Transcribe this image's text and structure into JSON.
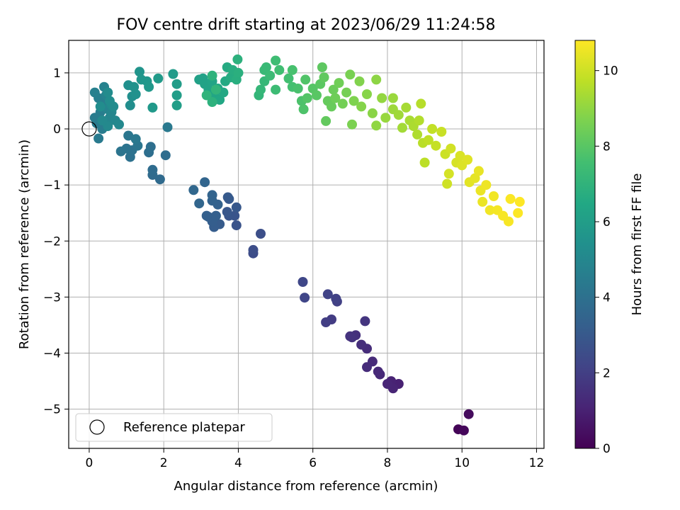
{
  "chart_data": {
    "type": "scatter",
    "title": "FOV centre drift starting at 2023/06/29 11:24:58",
    "xlabel": "Angular distance from reference (arcmin)",
    "ylabel": "Rotation from reference (arcmin)",
    "xlim": [
      -0.55,
      12.2
    ],
    "ylim": [
      -5.7,
      1.58
    ],
    "x_ticks": [
      0,
      2,
      4,
      6,
      8,
      10,
      12
    ],
    "y_ticks": [
      -5,
      -4,
      -3,
      -2,
      -1,
      0,
      1
    ],
    "grid": true,
    "legend": {
      "placement": "lower-left",
      "entries": [
        "Reference platepar"
      ]
    },
    "reference_point": {
      "x": 0,
      "y": 0
    },
    "colorbar": {
      "label": "Hours from first FF file",
      "range": [
        0,
        10.8
      ],
      "ticks": [
        0,
        2,
        4,
        6,
        8,
        10
      ],
      "colormap": "viridis"
    },
    "points": [
      {
        "x": 9.9,
        "y": -5.36,
        "h": 0.1
      },
      {
        "x": 10.05,
        "y": -5.38,
        "h": 0.2
      },
      {
        "x": 10.18,
        "y": -5.09,
        "h": 0.3
      },
      {
        "x": 8.3,
        "y": -4.55,
        "h": 1.0
      },
      {
        "x": 8.1,
        "y": -4.5,
        "h": 1.05
      },
      {
        "x": 8.15,
        "y": -4.63,
        "h": 1.1
      },
      {
        "x": 8.0,
        "y": -4.55,
        "h": 1.15
      },
      {
        "x": 7.8,
        "y": -4.38,
        "h": 1.2
      },
      {
        "x": 7.75,
        "y": -4.33,
        "h": 1.25
      },
      {
        "x": 7.6,
        "y": -4.15,
        "h": 1.3
      },
      {
        "x": 7.45,
        "y": -4.25,
        "h": 1.35
      },
      {
        "x": 7.45,
        "y": -3.92,
        "h": 1.4
      },
      {
        "x": 7.3,
        "y": -3.85,
        "h": 1.45
      },
      {
        "x": 7.15,
        "y": -3.68,
        "h": 1.5
      },
      {
        "x": 7.05,
        "y": -3.72,
        "h": 1.55
      },
      {
        "x": 7.0,
        "y": -3.7,
        "h": 1.6
      },
      {
        "x": 7.4,
        "y": -3.43,
        "h": 1.65
      },
      {
        "x": 6.5,
        "y": -3.4,
        "h": 1.9
      },
      {
        "x": 6.35,
        "y": -3.45,
        "h": 1.95
      },
      {
        "x": 6.65,
        "y": -3.08,
        "h": 2.05
      },
      {
        "x": 6.62,
        "y": -3.03,
        "h": 2.1
      },
      {
        "x": 6.4,
        "y": -2.95,
        "h": 2.15
      },
      {
        "x": 5.78,
        "y": -3.01,
        "h": 2.25
      },
      {
        "x": 5.73,
        "y": -2.73,
        "h": 2.3
      },
      {
        "x": 4.4,
        "y": -2.22,
        "h": 2.5
      },
      {
        "x": 4.4,
        "y": -2.16,
        "h": 2.55
      },
      {
        "x": 4.6,
        "y": -1.87,
        "h": 2.6
      },
      {
        "x": 3.95,
        "y": -1.72,
        "h": 2.75
      },
      {
        "x": 3.9,
        "y": -1.55,
        "h": 2.8
      },
      {
        "x": 3.75,
        "y": -1.55,
        "h": 2.85
      },
      {
        "x": 3.7,
        "y": -1.48,
        "h": 2.9
      },
      {
        "x": 3.95,
        "y": -1.4,
        "h": 2.95
      },
      {
        "x": 3.75,
        "y": -1.25,
        "h": 3.0
      },
      {
        "x": 3.72,
        "y": -1.22,
        "h": 3.05
      },
      {
        "x": 3.5,
        "y": -1.7,
        "h": 3.1
      },
      {
        "x": 3.35,
        "y": -1.75,
        "h": 3.15
      },
      {
        "x": 3.3,
        "y": -1.65,
        "h": 3.2
      },
      {
        "x": 3.2,
        "y": -1.57,
        "h": 3.25
      },
      {
        "x": 3.15,
        "y": -1.55,
        "h": 3.3
      },
      {
        "x": 3.4,
        "y": -1.55,
        "h": 3.3
      },
      {
        "x": 3.45,
        "y": -1.35,
        "h": 3.35
      },
      {
        "x": 3.3,
        "y": -1.28,
        "h": 3.4
      },
      {
        "x": 3.3,
        "y": -1.18,
        "h": 3.45
      },
      {
        "x": 3.1,
        "y": -0.95,
        "h": 3.5
      },
      {
        "x": 2.95,
        "y": -1.33,
        "h": 3.55
      },
      {
        "x": 2.8,
        "y": -1.09,
        "h": 3.6
      },
      {
        "x": 1.9,
        "y": -0.9,
        "h": 3.7
      },
      {
        "x": 1.7,
        "y": -0.82,
        "h": 3.75
      },
      {
        "x": 1.7,
        "y": -0.73,
        "h": 3.8
      },
      {
        "x": 2.05,
        "y": -0.47,
        "h": 3.85
      },
      {
        "x": 1.6,
        "y": -0.42,
        "h": 3.9
      },
      {
        "x": 1.65,
        "y": -0.32,
        "h": 3.95
      },
      {
        "x": 1.1,
        "y": -0.5,
        "h": 4.0
      },
      {
        "x": 1.15,
        "y": -0.38,
        "h": 4.05
      },
      {
        "x": 1.0,
        "y": -0.35,
        "h": 4.1
      },
      {
        "x": 0.85,
        "y": -0.4,
        "h": 4.15
      },
      {
        "x": 1.3,
        "y": -0.3,
        "h": 4.2
      },
      {
        "x": 1.05,
        "y": -0.12,
        "h": 4.25
      },
      {
        "x": 1.25,
        "y": -0.18,
        "h": 4.3
      },
      {
        "x": 2.1,
        "y": 0.03,
        "h": 4.35
      },
      {
        "x": 0.25,
        "y": -0.17,
        "h": 4.4
      },
      {
        "x": 0.2,
        "y": 0.1,
        "h": 4.45
      },
      {
        "x": 0.35,
        "y": 0.0,
        "h": 4.5
      },
      {
        "x": 0.15,
        "y": 0.2,
        "h": 4.5
      },
      {
        "x": 0.3,
        "y": 0.3,
        "h": 4.55
      },
      {
        "x": 0.4,
        "y": 0.45,
        "h": 4.6
      },
      {
        "x": 0.25,
        "y": 0.55,
        "h": 4.65
      },
      {
        "x": 0.15,
        "y": 0.65,
        "h": 4.7
      },
      {
        "x": 0.4,
        "y": 0.75,
        "h": 4.75
      },
      {
        "x": 0.45,
        "y": 0.6,
        "h": 4.8
      },
      {
        "x": 0.5,
        "y": 0.35,
        "h": 4.85
      },
      {
        "x": 0.55,
        "y": 0.2,
        "h": 4.9
      },
      {
        "x": 0.6,
        "y": 0.3,
        "h": 4.95
      },
      {
        "x": 0.7,
        "y": 0.15,
        "h": 5.0
      },
      {
        "x": 0.8,
        "y": 0.08,
        "h": 5.05
      },
      {
        "x": 0.5,
        "y": 0.05,
        "h": 5.1
      },
      {
        "x": 0.35,
        "y": 0.15,
        "h": 5.1
      },
      {
        "x": 0.6,
        "y": 0.42,
        "h": 5.15
      },
      {
        "x": 0.5,
        "y": 0.65,
        "h": 5.2
      },
      {
        "x": 0.65,
        "y": 0.4,
        "h": 5.2
      },
      {
        "x": 0.55,
        "y": 0.5,
        "h": 5.25
      },
      {
        "x": 0.3,
        "y": 0.4,
        "h": 5.25
      },
      {
        "x": 1.1,
        "y": 0.42,
        "h": 5.3
      },
      {
        "x": 1.15,
        "y": 0.58,
        "h": 5.35
      },
      {
        "x": 1.05,
        "y": 0.78,
        "h": 5.4
      },
      {
        "x": 1.25,
        "y": 0.62,
        "h": 5.45
      },
      {
        "x": 1.2,
        "y": 0.75,
        "h": 5.5
      },
      {
        "x": 1.35,
        "y": 1.02,
        "h": 5.6
      },
      {
        "x": 1.4,
        "y": 0.88,
        "h": 5.65
      },
      {
        "x": 1.55,
        "y": 0.85,
        "h": 5.7
      },
      {
        "x": 1.6,
        "y": 0.75,
        "h": 5.75
      },
      {
        "x": 1.7,
        "y": 0.38,
        "h": 5.8
      },
      {
        "x": 1.85,
        "y": 0.9,
        "h": 5.85
      },
      {
        "x": 2.25,
        "y": 0.98,
        "h": 5.9
      },
      {
        "x": 2.35,
        "y": 0.8,
        "h": 5.95
      },
      {
        "x": 2.35,
        "y": 0.6,
        "h": 6.0
      },
      {
        "x": 2.35,
        "y": 0.42,
        "h": 6.05
      },
      {
        "x": 2.95,
        "y": 0.88,
        "h": 6.1
      },
      {
        "x": 3.05,
        "y": 0.9,
        "h": 6.15
      },
      {
        "x": 3.1,
        "y": 0.8,
        "h": 6.2
      },
      {
        "x": 3.2,
        "y": 0.7,
        "h": 6.25
      },
      {
        "x": 3.3,
        "y": 0.85,
        "h": 6.3
      },
      {
        "x": 3.35,
        "y": 0.6,
        "h": 6.35
      },
      {
        "x": 3.45,
        "y": 0.72,
        "h": 6.4
      },
      {
        "x": 3.5,
        "y": 0.52,
        "h": 6.45
      },
      {
        "x": 3.6,
        "y": 0.65,
        "h": 6.5
      },
      {
        "x": 3.65,
        "y": 0.85,
        "h": 6.55
      },
      {
        "x": 3.7,
        "y": 1.1,
        "h": 6.6
      },
      {
        "x": 3.8,
        "y": 0.92,
        "h": 6.65
      },
      {
        "x": 3.85,
        "y": 1.05,
        "h": 6.7
      },
      {
        "x": 3.95,
        "y": 0.88,
        "h": 6.75
      },
      {
        "x": 4.0,
        "y": 1.0,
        "h": 6.8
      },
      {
        "x": 3.98,
        "y": 1.24,
        "h": 6.85
      },
      {
        "x": 3.3,
        "y": 0.48,
        "h": 6.9
      },
      {
        "x": 3.3,
        "y": 0.95,
        "h": 6.95
      },
      {
        "x": 3.15,
        "y": 0.6,
        "h": 7.0
      },
      {
        "x": 3.4,
        "y": 0.7,
        "h": 7.05
      },
      {
        "x": 4.55,
        "y": 0.6,
        "h": 7.1
      },
      {
        "x": 4.6,
        "y": 0.7,
        "h": 7.15
      },
      {
        "x": 4.7,
        "y": 0.85,
        "h": 7.2
      },
      {
        "x": 4.7,
        "y": 1.05,
        "h": 7.25
      },
      {
        "x": 4.75,
        "y": 1.1,
        "h": 7.3
      },
      {
        "x": 4.85,
        "y": 0.95,
        "h": 7.35
      },
      {
        "x": 5.0,
        "y": 0.7,
        "h": 7.4
      },
      {
        "x": 5.0,
        "y": 1.22,
        "h": 7.45
      },
      {
        "x": 5.1,
        "y": 1.05,
        "h": 7.5
      },
      {
        "x": 5.35,
        "y": 0.9,
        "h": 7.55
      },
      {
        "x": 5.45,
        "y": 0.75,
        "h": 7.6
      },
      {
        "x": 5.45,
        "y": 1.05,
        "h": 7.65
      },
      {
        "x": 5.6,
        "y": 0.72,
        "h": 7.7
      },
      {
        "x": 5.7,
        "y": 0.5,
        "h": 7.75
      },
      {
        "x": 5.75,
        "y": 0.35,
        "h": 7.8
      },
      {
        "x": 5.8,
        "y": 0.88,
        "h": 7.85
      },
      {
        "x": 5.85,
        "y": 0.55,
        "h": 7.9
      },
      {
        "x": 6.0,
        "y": 0.72,
        "h": 7.95
      },
      {
        "x": 6.1,
        "y": 0.6,
        "h": 8.0
      },
      {
        "x": 6.2,
        "y": 0.8,
        "h": 8.05
      },
      {
        "x": 6.25,
        "y": 1.1,
        "h": 8.1
      },
      {
        "x": 6.3,
        "y": 0.92,
        "h": 8.15
      },
      {
        "x": 6.35,
        "y": 0.14,
        "h": 8.2
      },
      {
        "x": 6.4,
        "y": 0.5,
        "h": 8.25
      },
      {
        "x": 6.5,
        "y": 0.4,
        "h": 8.3
      },
      {
        "x": 6.55,
        "y": 0.7,
        "h": 8.35
      },
      {
        "x": 6.6,
        "y": 0.55,
        "h": 8.4
      },
      {
        "x": 6.7,
        "y": 0.82,
        "h": 8.45
      },
      {
        "x": 6.8,
        "y": 0.45,
        "h": 8.5
      },
      {
        "x": 6.9,
        "y": 0.65,
        "h": 8.55
      },
      {
        "x": 7.0,
        "y": 0.97,
        "h": 8.6
      },
      {
        "x": 7.05,
        "y": 0.08,
        "h": 8.65
      },
      {
        "x": 7.1,
        "y": 0.5,
        "h": 8.7
      },
      {
        "x": 7.25,
        "y": 0.85,
        "h": 8.75
      },
      {
        "x": 7.3,
        "y": 0.4,
        "h": 8.8
      },
      {
        "x": 7.45,
        "y": 0.62,
        "h": 8.85
      },
      {
        "x": 7.6,
        "y": 0.28,
        "h": 8.9
      },
      {
        "x": 7.7,
        "y": 0.88,
        "h": 8.95
      },
      {
        "x": 7.7,
        "y": 0.06,
        "h": 9.0
      },
      {
        "x": 7.85,
        "y": 0.55,
        "h": 9.05
      },
      {
        "x": 7.95,
        "y": 0.2,
        "h": 9.1
      },
      {
        "x": 8.15,
        "y": 0.55,
        "h": 9.15
      },
      {
        "x": 8.15,
        "y": 0.35,
        "h": 9.2
      },
      {
        "x": 8.3,
        "y": 0.25,
        "h": 9.25
      },
      {
        "x": 8.4,
        "y": 0.02,
        "h": 9.3
      },
      {
        "x": 8.5,
        "y": 0.38,
        "h": 9.35
      },
      {
        "x": 8.6,
        "y": 0.15,
        "h": 9.4
      },
      {
        "x": 8.7,
        "y": 0.05,
        "h": 9.45
      },
      {
        "x": 8.8,
        "y": -0.1,
        "h": 9.5
      },
      {
        "x": 8.85,
        "y": 0.15,
        "h": 9.55
      },
      {
        "x": 8.9,
        "y": 0.45,
        "h": 9.6
      },
      {
        "x": 8.95,
        "y": -0.25,
        "h": 9.65
      },
      {
        "x": 9.0,
        "y": -0.6,
        "h": 9.7
      },
      {
        "x": 9.1,
        "y": -0.2,
        "h": 9.75
      },
      {
        "x": 9.2,
        "y": 0.0,
        "h": 9.8
      },
      {
        "x": 9.3,
        "y": -0.3,
        "h": 9.85
      },
      {
        "x": 9.45,
        "y": -0.05,
        "h": 9.9
      },
      {
        "x": 9.55,
        "y": -0.45,
        "h": 9.95
      },
      {
        "x": 9.6,
        "y": -0.98,
        "h": 10.0
      },
      {
        "x": 9.7,
        "y": -0.35,
        "h": 10.05
      },
      {
        "x": 9.65,
        "y": -0.8,
        "h": 10.1
      },
      {
        "x": 9.85,
        "y": -0.6,
        "h": 10.15
      },
      {
        "x": 9.95,
        "y": -0.48,
        "h": 10.2
      },
      {
        "x": 10.0,
        "y": -0.65,
        "h": 10.25
      },
      {
        "x": 10.15,
        "y": -0.55,
        "h": 10.3
      },
      {
        "x": 10.2,
        "y": -0.95,
        "h": 10.35
      },
      {
        "x": 10.35,
        "y": -0.88,
        "h": 10.4
      },
      {
        "x": 10.45,
        "y": -0.75,
        "h": 10.45
      },
      {
        "x": 10.5,
        "y": -1.1,
        "h": 10.5
      },
      {
        "x": 10.55,
        "y": -1.3,
        "h": 10.5
      },
      {
        "x": 10.65,
        "y": -1.0,
        "h": 10.55
      },
      {
        "x": 10.75,
        "y": -1.45,
        "h": 10.6
      },
      {
        "x": 10.85,
        "y": -1.2,
        "h": 10.6
      },
      {
        "x": 10.95,
        "y": -1.45,
        "h": 10.65
      },
      {
        "x": 11.1,
        "y": -1.55,
        "h": 10.7
      },
      {
        "x": 11.25,
        "y": -1.65,
        "h": 10.7
      },
      {
        "x": 11.3,
        "y": -1.25,
        "h": 10.75
      },
      {
        "x": 11.5,
        "y": -1.5,
        "h": 10.78
      },
      {
        "x": 11.55,
        "y": -1.3,
        "h": 10.8
      }
    ]
  }
}
